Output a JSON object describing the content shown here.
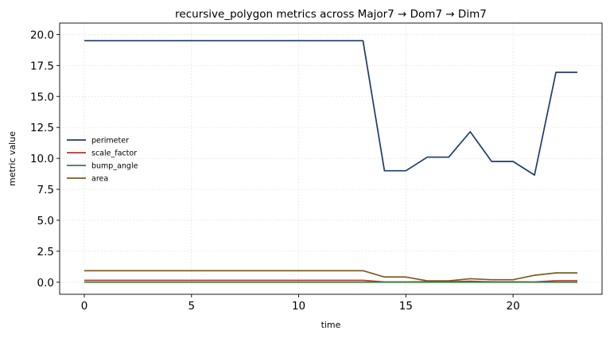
{
  "chart_data": {
    "type": "line",
    "title": "recursive_polygon metrics across Major7 → Dom7 → Dim7",
    "xlabel": "time",
    "ylabel": "metric value",
    "xlim": [
      -1.15,
      24.15
    ],
    "ylim": [
      -0.975,
      20.925
    ],
    "xticks": [
      0,
      5,
      10,
      15,
      20
    ],
    "xtick_labels": [
      "0",
      "5",
      "10",
      "15",
      "20"
    ],
    "yticks": [
      0,
      2.5,
      5,
      7.5,
      10,
      12.5,
      15,
      17.5,
      20
    ],
    "ytick_labels": [
      "0.0",
      "2.5",
      "5.0",
      "7.5",
      "10.0",
      "12.5",
      "15.0",
      "17.5",
      "20.0"
    ],
    "grid": true,
    "legend_position": "center-left",
    "x": [
      0,
      1,
      2,
      3,
      4,
      5,
      6,
      7,
      8,
      9,
      10,
      11,
      12,
      13,
      14,
      15,
      16,
      17,
      18,
      19,
      20,
      21,
      22,
      23
    ],
    "series": [
      {
        "name": "perimeter",
        "color": "#1f3a6e",
        "values": [
          19.5,
          19.5,
          19.5,
          19.5,
          19.5,
          19.5,
          19.5,
          19.5,
          19.5,
          19.5,
          19.5,
          19.5,
          19.5,
          19.5,
          9.0,
          9.0,
          10.1,
          10.1,
          12.15,
          9.75,
          9.75,
          8.65,
          16.95,
          16.95
        ]
      },
      {
        "name": "scale_factor",
        "color": "#b03a2e",
        "values": [
          0.15,
          0.15,
          0.15,
          0.15,
          0.15,
          0.15,
          0.15,
          0.15,
          0.15,
          0.15,
          0.15,
          0.15,
          0.15,
          0.15,
          0.02,
          0.02,
          0.04,
          0.04,
          0.08,
          0.03,
          0.03,
          0.02,
          0.12,
          0.12
        ]
      },
      {
        "name": "bump_angle",
        "color": "#3a7d44",
        "values": [
          0,
          0,
          0,
          0,
          0,
          0,
          0,
          0,
          0,
          0,
          0,
          0,
          0,
          0,
          0,
          0,
          0,
          0,
          0,
          0,
          0,
          0,
          0,
          0
        ]
      },
      {
        "name": "area",
        "color": "#7a5c1e",
        "values": [
          0.93,
          0.93,
          0.93,
          0.93,
          0.93,
          0.93,
          0.93,
          0.93,
          0.93,
          0.93,
          0.93,
          0.93,
          0.93,
          0.93,
          0.42,
          0.42,
          0.11,
          0.11,
          0.28,
          0.2,
          0.2,
          0.56,
          0.75,
          0.75
        ]
      }
    ]
  }
}
